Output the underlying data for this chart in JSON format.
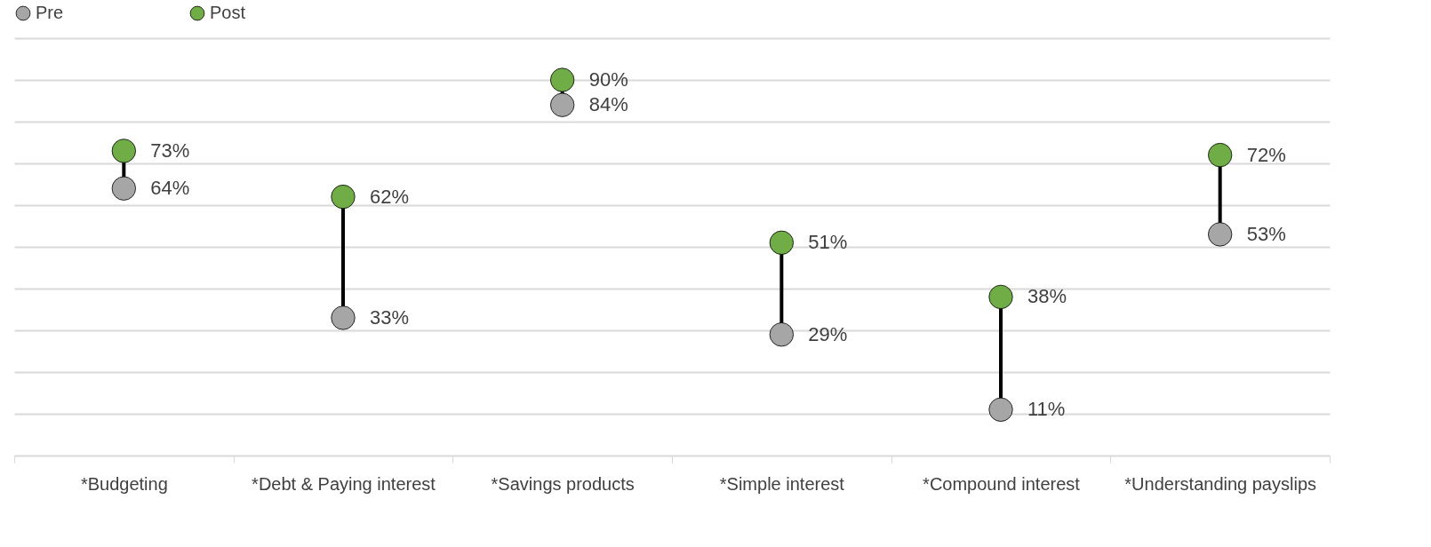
{
  "chart_data": {
    "type": "scatter",
    "categories": [
      "*Budgeting",
      "*Debt & Paying interest",
      "*Savings products",
      "*Simple interest",
      "*Compound interest",
      "*Understanding payslips"
    ],
    "series": [
      {
        "name": "Pre",
        "color": "#a6a6a6",
        "values": [
          64,
          33,
          84,
          29,
          11,
          53
        ],
        "value_labels": [
          "64%",
          "33%",
          "84%",
          "29%",
          "11%",
          "53%"
        ]
      },
      {
        "name": "Post",
        "color": "#70ad47",
        "values": [
          73,
          62,
          90,
          51,
          38,
          72
        ],
        "value_labels": [
          "73%",
          "62%",
          "90%",
          "51%",
          "38%",
          "72%"
        ]
      }
    ],
    "ylim": [
      0,
      100
    ],
    "yticks": [
      {
        "value": 0,
        "label": null
      },
      {
        "value": 10,
        "label": null
      },
      {
        "value": 20,
        "label": null
      },
      {
        "value": 30,
        "label": null
      },
      {
        "value": 40,
        "label": null
      },
      {
        "value": 50,
        "label": null
      },
      {
        "value": 60,
        "label": null
      },
      {
        "value": 70,
        "label": null
      },
      {
        "value": 80,
        "label": null
      },
      {
        "value": 90,
        "label": null
      },
      {
        "value": 100,
        "label": null
      }
    ],
    "tick_labels": "x",
    "grid": "y",
    "legend": "top left",
    "marker": "circle"
  }
}
